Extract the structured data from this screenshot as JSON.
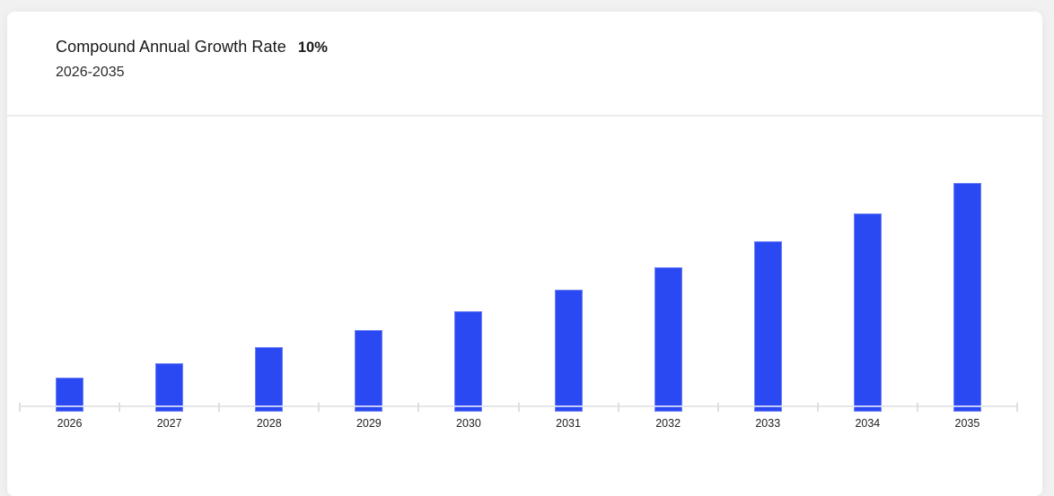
{
  "header": {
    "title": "Compound Annual Growth Rate",
    "highlight": "10%",
    "subtitle": "2026-2035"
  },
  "chart_data": {
    "type": "bar",
    "title": "Compound Annual Growth Rate",
    "subtitle": "2026-2035",
    "cagr_percent": 10,
    "categories": [
      "2026",
      "2027",
      "2028",
      "2029",
      "2030",
      "2031",
      "2032",
      "2033",
      "2034",
      "2035"
    ],
    "values": [
      100,
      110,
      121,
      133.1,
      146.41,
      161.05,
      177.16,
      194.87,
      214.36,
      235.79
    ],
    "xlabel": "",
    "ylabel": "",
    "ylim": [
      80,
      240
    ],
    "grid": false,
    "legend": false,
    "bar_color": "#2b49f2",
    "axis_color": "#e5e6e9",
    "tick_color": "#dddee2",
    "label_color": "#202125"
  }
}
